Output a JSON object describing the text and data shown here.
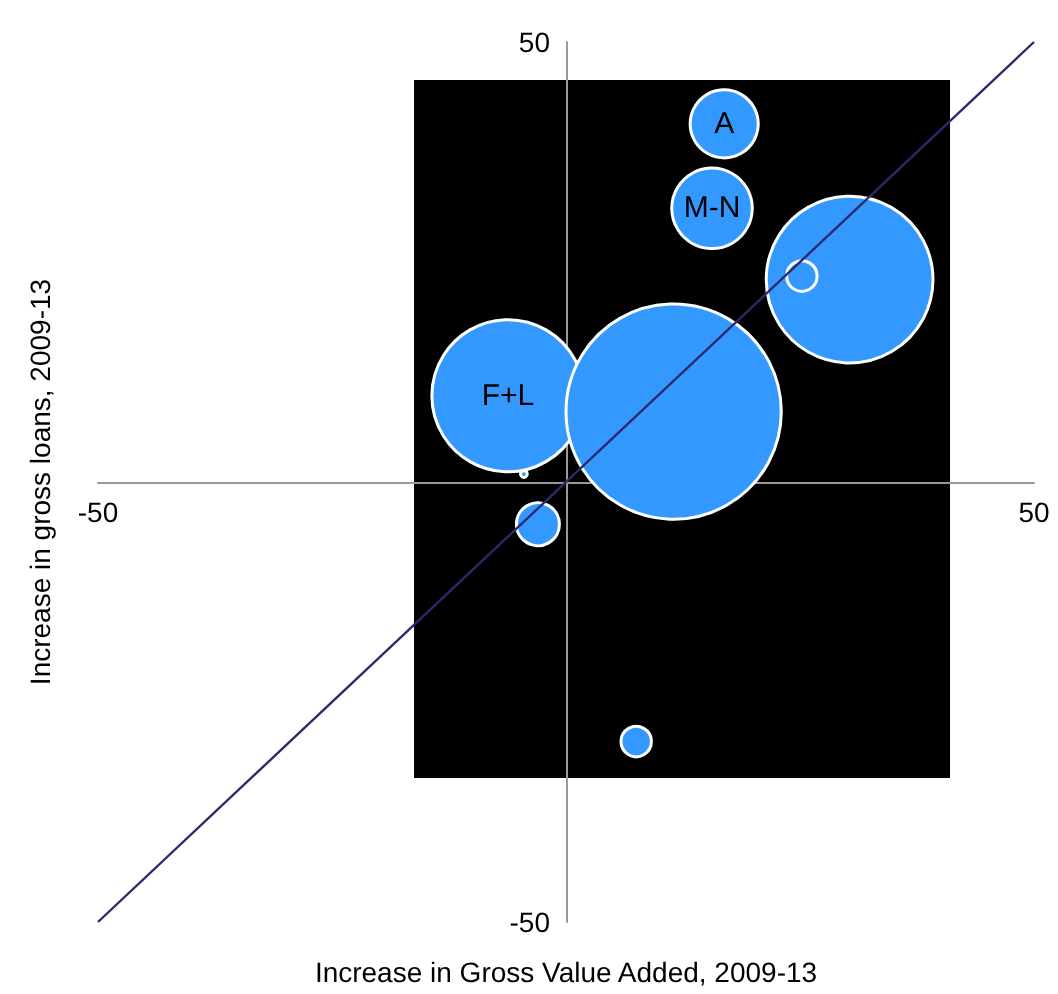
{
  "chart_data": {
    "type": "bubble",
    "xlabel": "Increase in Gross Value Added, 2009-13",
    "ylabel": "Increase in gross loans, 2009-13",
    "xlim": [
      -50,
      50
    ],
    "ylim": [
      -50,
      50
    ],
    "xticks": [
      -50,
      50
    ],
    "yticks": [
      -50,
      50
    ],
    "grid": false,
    "series": [
      {
        "color": "#3399ff",
        "x": [
          16.9,
          15.6,
          30.3,
          25.2,
          -6.2,
          11.5,
          -4.5,
          -3.0,
          7.5
        ],
        "values": [
          40.7,
          31.1,
          23.0,
          23.4,
          9.8,
          8.0,
          0.9,
          -4.8,
          -29.5
        ],
        "sizes": [
          0.1,
          0.14,
          0.6,
          0.02,
          0.5,
          1,
          0.001,
          0.04,
          0.02
        ]
      },
      {
        "type": "line",
        "color": "#2b2b6b",
        "x": [
          -50,
          50
        ],
        "values": [
          -50,
          50
        ],
        "marker": "none"
      }
    ],
    "annotations": [
      {
        "text": "A",
        "x": 16.9,
        "y": 40.7
      },
      {
        "text": "M-N",
        "x": 15.6,
        "y": 31.1
      },
      {
        "text": "F+L",
        "x": -6.2,
        "y": 9.8
      }
    ]
  }
}
